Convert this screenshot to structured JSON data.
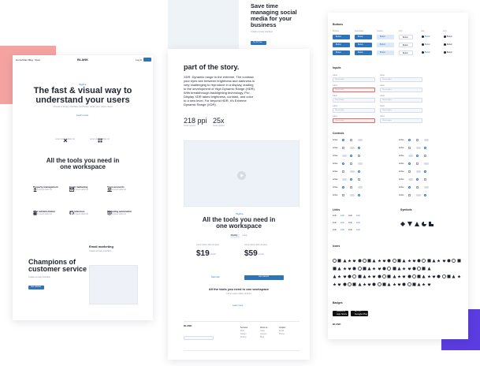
{
  "colors": {
    "accent": "#2f73b8",
    "pink": "#f4a3a0",
    "purple": "#5b3ce0",
    "mist": "#eef3f8",
    "error": "#e06d6d"
  },
  "left_card": {
    "nav": {
      "links": [
        "Home",
        "Stats",
        "Blog",
        "Store"
      ],
      "brand": "BLANK",
      "login": "Log in",
      "cta": "Sign up"
    },
    "hero": {
      "kicker": "Tagline",
      "title_line1": "The fast & visual way to",
      "title_line2": "understand your users",
      "subtitle": "Create a lovely interface and learn what your users need",
      "link": "Learn more"
    },
    "feature_pair": [
      {
        "icon": "arrows-icon",
        "text": "Lorem ipsum dolor sit"
      },
      {
        "icon": "grid-icon",
        "text": "Lorem ipsum dolor sit"
      }
    ],
    "tools": {
      "title_line1": "All the tools you need in",
      "title_line2": "one workspace",
      "items": [
        {
          "icon": "user-icon",
          "title": "Property management",
          "desc": "Lorem ipsum dolor sit"
        },
        {
          "icon": "mail-icon",
          "title": "Email marketing",
          "desc": "Lorem ipsum dolor sit"
        },
        {
          "icon": "team-icon",
          "title": "Team accounts",
          "desc": "Lorem ipsum dolor sit"
        },
        {
          "icon": "lock-icon",
          "title": "User administration",
          "desc": "Lorem ipsum dolor sit"
        },
        {
          "icon": "code-icon",
          "title": "API reference",
          "desc": "Lorem ipsum dolor sit"
        },
        {
          "icon": "cog-icon",
          "title": "Marketing automation",
          "desc": "Lorem ipsum dolor sit"
        }
      ]
    },
    "champions": {
      "title_line1": "Champions of",
      "title_line2": "customer service",
      "desc": "Create a lovely interface",
      "button": "Get started"
    },
    "email": {
      "title": "Email marketing",
      "desc": "Create a lovely interface"
    }
  },
  "middle_card": {
    "social": {
      "title_line1": "Save time",
      "title_line2": "managing social",
      "title_line3": "media for your",
      "title_line4": "business",
      "desc": "Create a lovely interface",
      "button": "Try for free"
    },
    "story": {
      "title": "part of the story.",
      "paragraph": [
        "XDR. Dynamic range to the extreme. The contrast",
        "your eyes see between brightness and darkness is",
        "very challenging to reproduce in a display, leading",
        "to the development of High Dynamic Range (HDR).",
        "With breakthrough backlighting technology, Pro",
        "Display XDR takes brightness, contrast, and color",
        "to a new level. For beyond HDR, it's Extreme",
        "Dynamic Range (XDR)."
      ]
    },
    "stats": [
      {
        "value": "218 ppi",
        "label": "Lorem ipsum"
      },
      {
        "value": "25x",
        "label": "Lorem ipsum"
      }
    ],
    "pricing": {
      "kicker": "Tagline",
      "title_line1": "All the tools you need in",
      "title_line2": "one workspace",
      "tabs": [
        "Monthly",
        "Yearly"
      ],
      "plans": [
        {
          "price": "$19",
          "per": "/ month",
          "button": "Start trial"
        },
        {
          "price": "$59",
          "per": "/ month",
          "button": "Get started"
        }
      ]
    },
    "bottom": {
      "title": "All the tools you need in one workspace",
      "desc": "Lorem ipsum dolor sit amet",
      "link": "Learn more"
    },
    "footer": {
      "brand": "BLANK",
      "cols": [
        [
          "Services",
          "Web",
          "Design",
          "Pricing"
        ],
        [
          "About us",
          "Team",
          "Careers",
          "Blog"
        ],
        [
          "Contact",
          "Email",
          "Phone"
        ]
      ]
    }
  },
  "right_card": {
    "sections": {
      "buttons": "Buttons",
      "inputs": "Inputs",
      "controls": "Controls",
      "links": "Links",
      "symbols": "Symbols",
      "icons": "Icons",
      "badges": "Badges"
    },
    "button_col_heads": [
      "Primary",
      "Secondary",
      "Tertiary",
      "Text",
      "Link",
      "Icon"
    ],
    "button_label": "Button",
    "input_label": "Label",
    "input_placeholder": "Placeholder",
    "link_text": "Link",
    "control_label": "Active",
    "badges": {
      "appstore_small": "Download on the",
      "appstore": "App Store",
      "googleplay_small": "GET IT ON",
      "googleplay": "Google Play"
    },
    "brand": "BLANK"
  }
}
